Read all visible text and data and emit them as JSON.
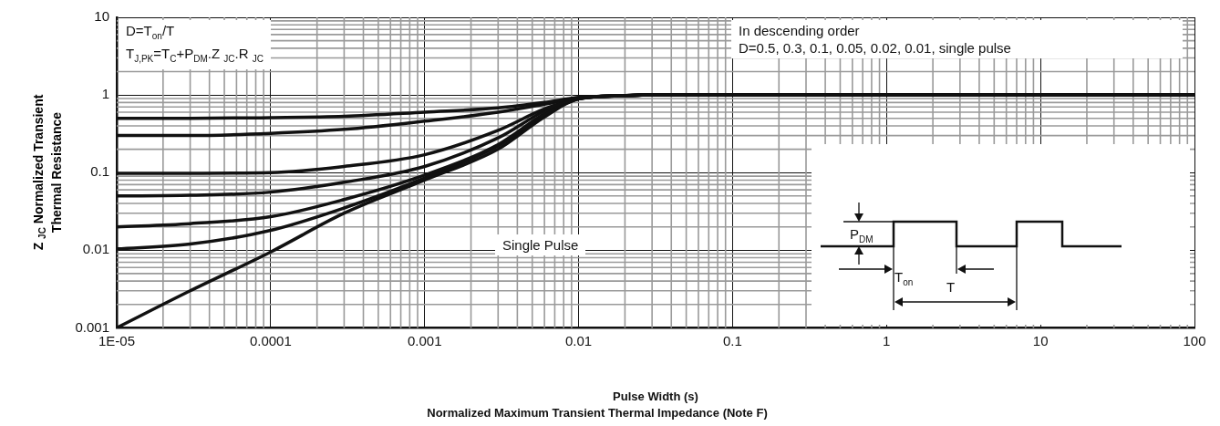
{
  "chart_data": {
    "type": "line",
    "title": "Normalized Maximum Transient Thermal Impedance (Note F)",
    "xlabel": "Pulse Width (s)",
    "ylabel": "Z $_{JC}$ Normalized Transient\nThermal Resistance",
    "x": [
      1e-05,
      3e-05,
      0.0001,
      0.0003,
      0.001,
      0.003,
      0.006,
      0.01,
      0.02,
      0.03,
      100
    ],
    "series": [
      {
        "color": "#111111",
        "values": [
          0.5,
          0.5,
          0.51,
          0.53,
          0.6,
          0.68,
          0.8,
          0.93,
          0.98,
          1,
          1
        ]
      },
      {
        "color": "#111111",
        "values": [
          0.3,
          0.3,
          0.32,
          0.36,
          0.46,
          0.6,
          0.76,
          0.92,
          0.98,
          1,
          1
        ]
      },
      {
        "color": "#111111",
        "values": [
          0.098,
          0.098,
          0.1,
          0.12,
          0.17,
          0.35,
          0.66,
          0.9,
          0.98,
          1,
          1
        ]
      },
      {
        "color": "#111111",
        "values": [
          0.05,
          0.051,
          0.056,
          0.075,
          0.12,
          0.28,
          0.62,
          0.9,
          0.98,
          1,
          1
        ]
      },
      {
        "color": "#111111",
        "values": [
          0.02,
          0.022,
          0.027,
          0.045,
          0.093,
          0.23,
          0.57,
          0.89,
          0.98,
          1,
          1
        ]
      },
      {
        "color": "#111111",
        "values": [
          0.0104,
          0.012,
          0.018,
          0.035,
          0.085,
          0.22,
          0.55,
          0.89,
          0.98,
          1,
          1
        ]
      },
      {
        "color": "#111111",
        "values": [
          0.001,
          0.003,
          0.0095,
          0.03,
          0.08,
          0.2,
          0.52,
          0.89,
          0.98,
          1,
          1
        ]
      }
    ],
    "log": "xy",
    "xlim": [
      1e-05,
      100
    ],
    "xticks": [
      {
        "value": 1e-05,
        "label": "1E-05"
      },
      0.0001,
      0.001,
      0.01,
      0.1,
      1,
      10,
      100
    ],
    "ylim": [
      0.001,
      10
    ],
    "yticks": [
      0.001,
      0.01,
      0.1,
      1,
      10
    ],
    "grid": true,
    "line_style": "solid",
    "annotations": [
      "D=T$_{on}$/T\nT$_{J,PK}$=T$_{C}$+P$_{DM}$.Z $_{JC}$.R $_{JC}$",
      "In descending order\nD=0.5, 0.3, 0.1, 0.05, 0.02, 0.01, single pulse",
      "Single Pulse",
      "P$_{DM}$",
      "T$_{on}$",
      "T"
    ]
  }
}
